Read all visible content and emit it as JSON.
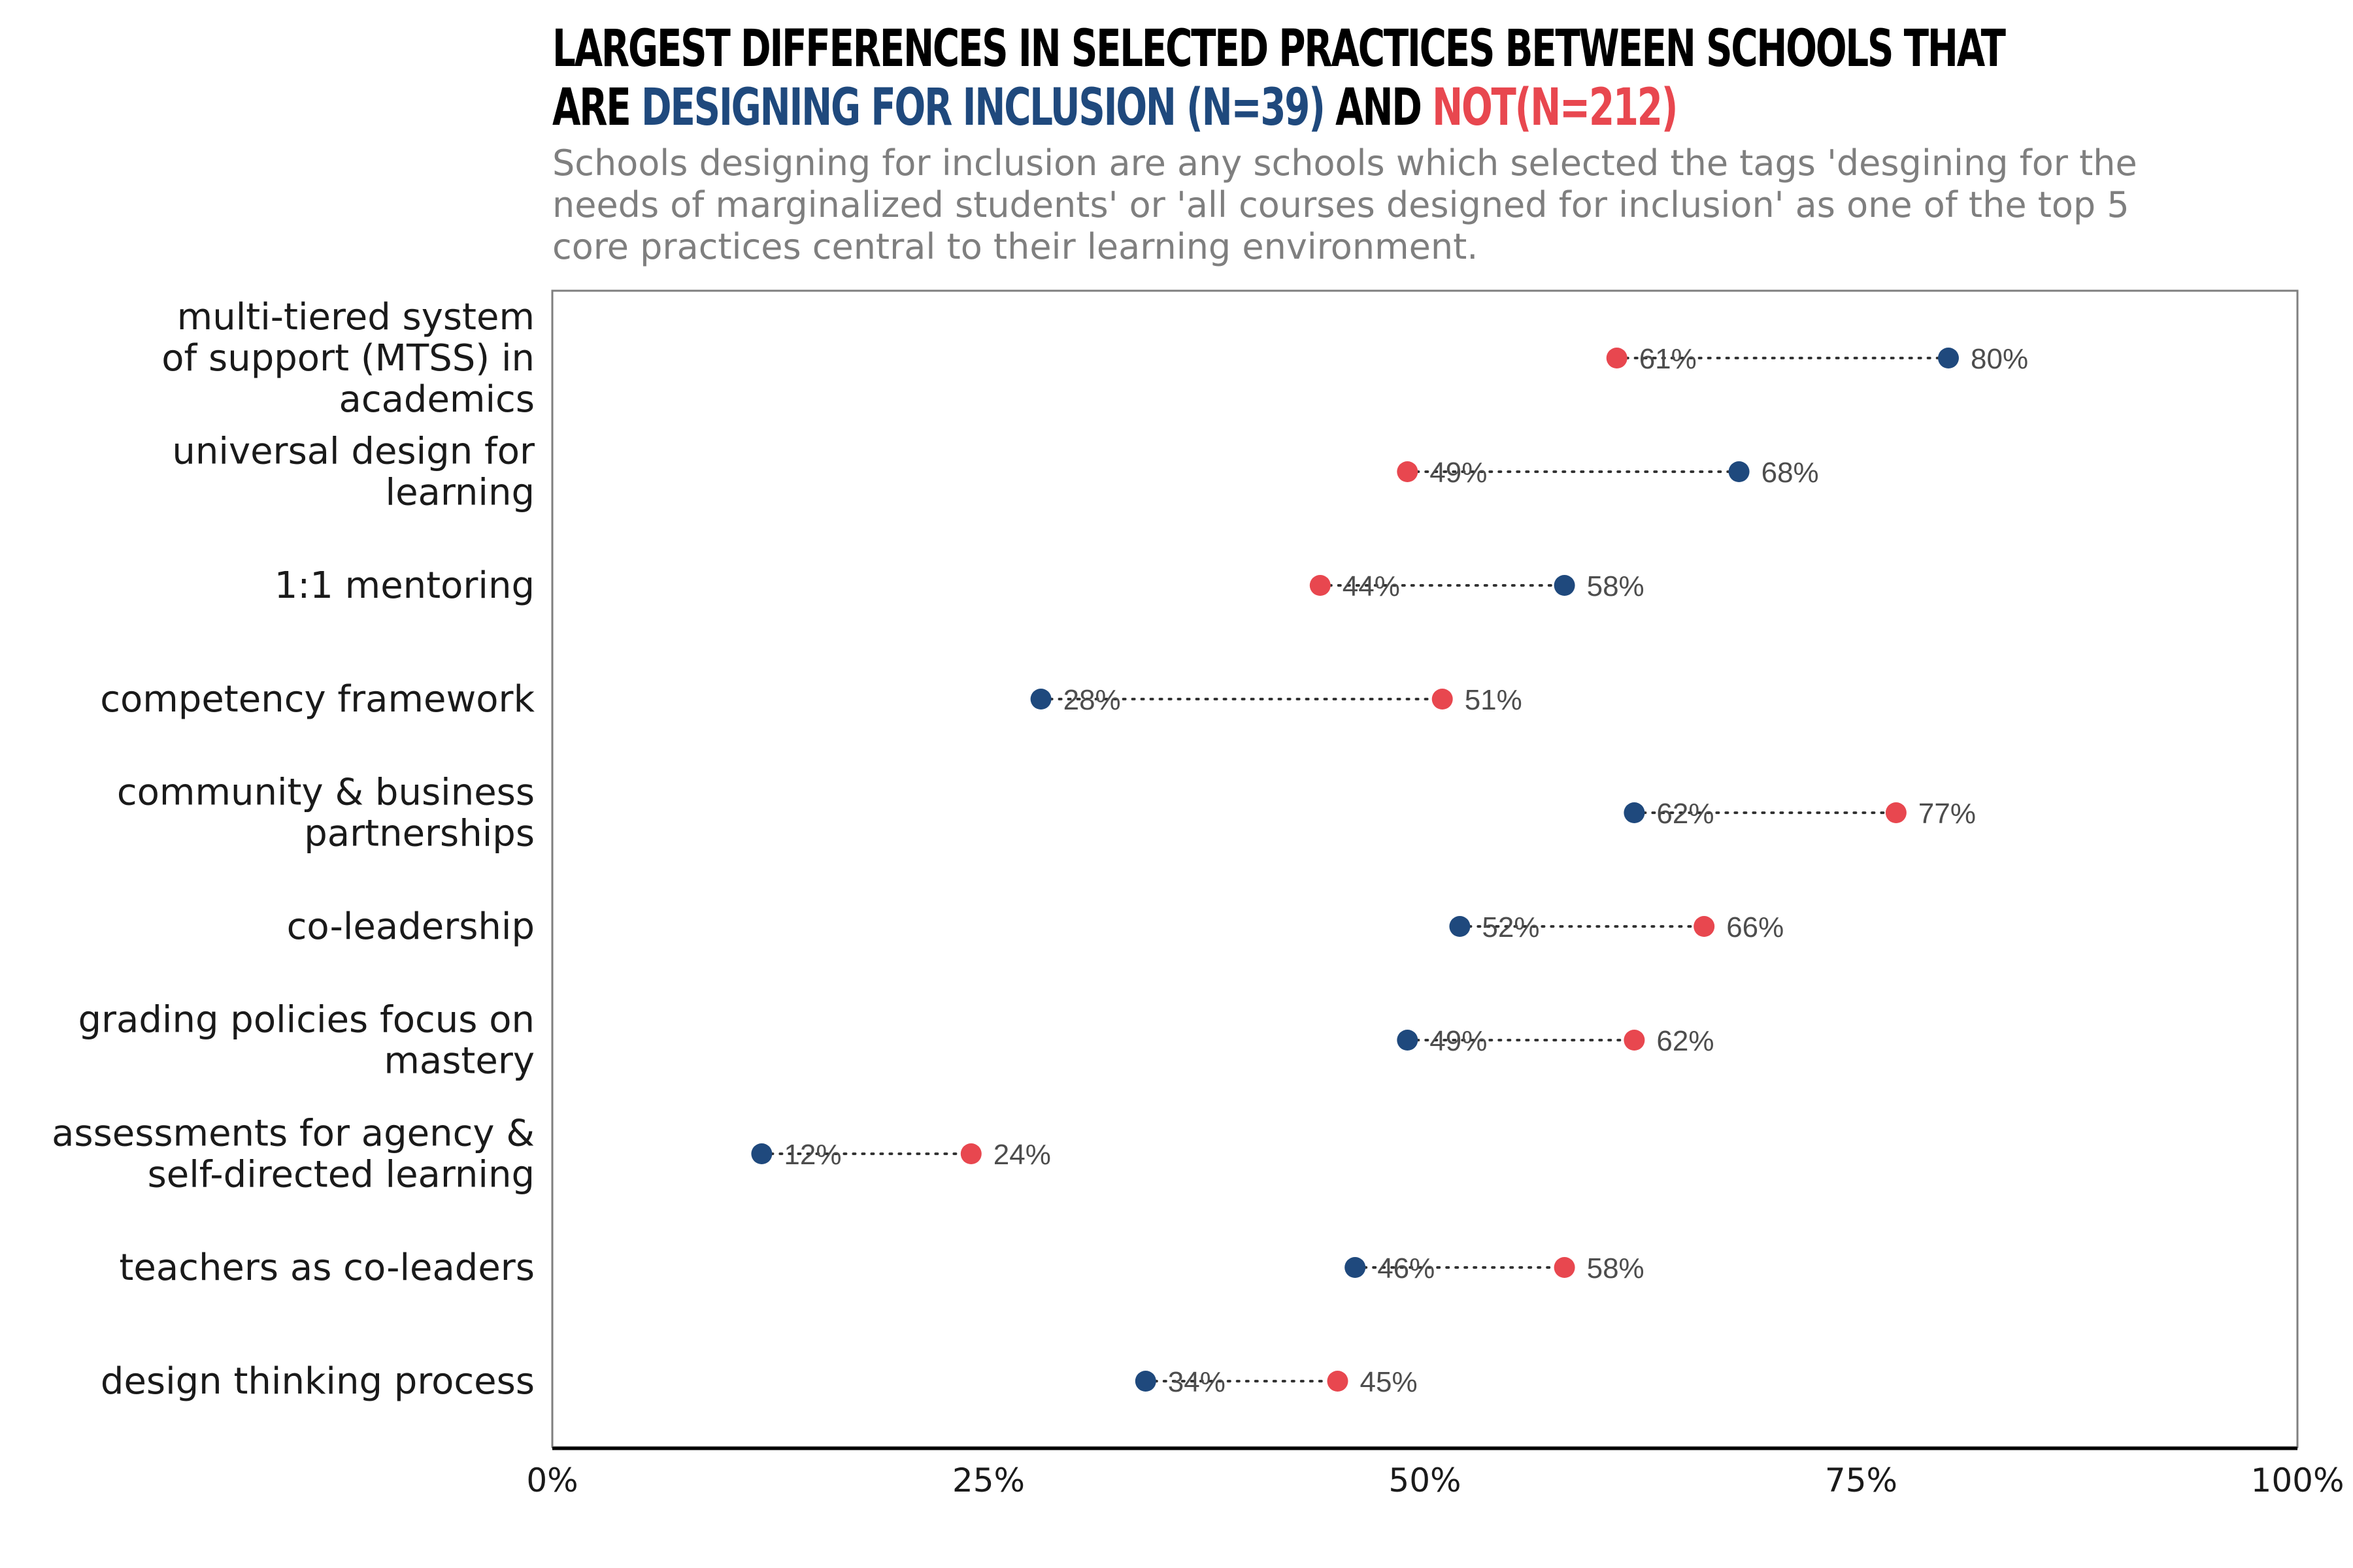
{
  "title": {
    "line1": "LARGEST DIFFERENCES IN SELECTED PRACTICES BETWEEN SCHOOLS THAT",
    "line2_prefix": "ARE ",
    "line2_inclusion": "DESIGNING FOR INCLUSION (N=39)",
    "line2_and": " AND ",
    "line2_not": "NOT(N=212)"
  },
  "subtitle": "Schools designing for inclusion are any schools which selected the tags 'desgining for the needs of marginalized students' or 'all courses designed for inclusion' as one of the top 5 core practices central to their learning environment.",
  "colors": {
    "inclusion": "#1f497d",
    "not": "#e8474f",
    "connector": "#333333"
  },
  "chart_data": {
    "type": "dumbbell",
    "categories": [
      [
        "multi-tiered system",
        "of support (MTSS) in",
        "academics"
      ],
      [
        "universal design for",
        "learning"
      ],
      [
        "1:1 mentoring"
      ],
      [
        "competency framework"
      ],
      [
        "community & business",
        "partnerships"
      ],
      [
        "co-leadership"
      ],
      [
        "grading policies focus on",
        "mastery"
      ],
      [
        "assessments for agency &",
        "self-directed learning"
      ],
      [
        "teachers as co-leaders"
      ],
      [
        "design thinking process"
      ]
    ],
    "series": [
      {
        "name": "DESIGNING FOR INCLUSION (N=39)",
        "color": "#1f497d",
        "values": [
          80,
          68,
          58,
          28,
          62,
          52,
          49,
          12,
          46,
          34
        ]
      },
      {
        "name": "NOT(N=212)",
        "color": "#e8474f",
        "values": [
          61,
          49,
          44,
          51,
          77,
          66,
          62,
          24,
          58,
          45
        ]
      }
    ],
    "value_labels": {
      "inclusion": [
        "80%",
        "68%",
        "58%",
        "28%",
        "62%",
        "52%",
        "49%",
        "12%",
        "46%",
        "34%"
      ],
      "not": [
        "61%",
        "49%",
        "44%",
        "51%",
        "77%",
        "66%",
        "62%",
        "24%",
        "58%",
        "45%"
      ]
    },
    "xlim": [
      0,
      100
    ],
    "x_ticks": [
      0,
      25,
      50,
      75,
      100
    ],
    "x_tick_labels": [
      "0%",
      "25%",
      "50%",
      "75%",
      "100%"
    ],
    "grid": false,
    "legend": "in title"
  }
}
